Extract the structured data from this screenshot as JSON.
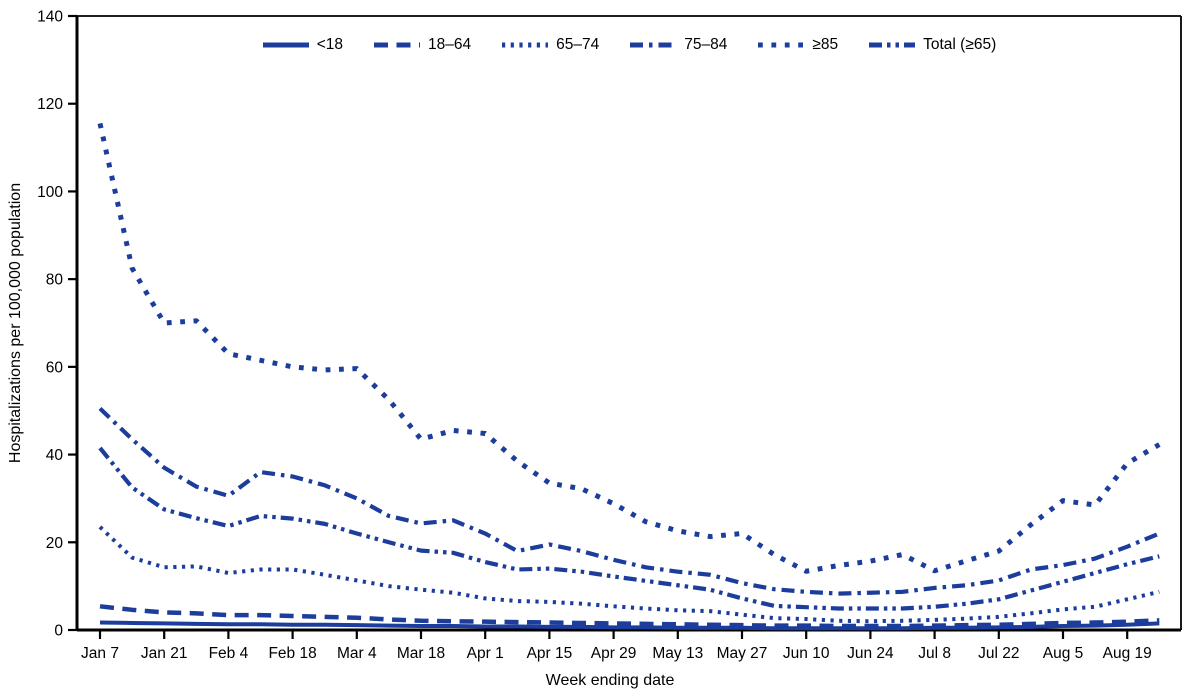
{
  "figure": {
    "line_color": "#1c3d9c",
    "axis_color": "#000000",
    "background": "#ffffff"
  },
  "chart_data": {
    "type": "line",
    "title": "",
    "xlabel": "Week ending date",
    "ylabel": "Hospitalizations per 100,000 population",
    "ylim": [
      0,
      140
    ],
    "y_ticks": [
      0,
      20,
      40,
      60,
      80,
      100,
      120,
      140
    ],
    "grid": false,
    "legend_position": "top-center",
    "x": [
      "Jan 7",
      "Jan 14",
      "Jan 21",
      "Jan 28",
      "Feb 4",
      "Feb 11",
      "Feb 18",
      "Feb 25",
      "Mar 4",
      "Mar 11",
      "Mar 18",
      "Mar 25",
      "Apr 1",
      "Apr 8",
      "Apr 15",
      "Apr 22",
      "Apr 29",
      "May 6",
      "May 13",
      "May 20",
      "May 27",
      "Jun 3",
      "Jun 10",
      "Jun 17",
      "Jun 24",
      "Jul 1",
      "Jul 8",
      "Jul 15",
      "Jul 22",
      "Jul 29",
      "Aug 5",
      "Aug 12",
      "Aug 19",
      "Aug 26"
    ],
    "x_tick_labels": [
      "Jan 7",
      "Jan 21",
      "Feb 4",
      "Feb 18",
      "Mar 4",
      "Mar 18",
      "Apr 1",
      "Apr 15",
      "Apr 29",
      "May 13",
      "May 27",
      "Jun 10",
      "Jun 24",
      "Jul 8",
      "Jul 22",
      "Aug 5",
      "Aug 19"
    ],
    "series": [
      {
        "name": "<18",
        "dash": "solid",
        "values": [
          1.7,
          1.6,
          1.5,
          1.4,
          1.3,
          1.3,
          1.2,
          1.2,
          1.1,
          1.0,
          0.9,
          0.9,
          0.8,
          0.8,
          0.7,
          0.7,
          0.6,
          0.6,
          0.5,
          0.5,
          0.5,
          0.4,
          0.4,
          0.4,
          0.4,
          0.4,
          0.5,
          0.5,
          0.6,
          0.7,
          0.9,
          1.0,
          1.2,
          1.5
        ]
      },
      {
        "name": "18–64",
        "dash": "dash",
        "values": [
          5.4,
          4.6,
          4.0,
          3.8,
          3.4,
          3.4,
          3.2,
          3.0,
          2.8,
          2.4,
          2.1,
          2.0,
          1.9,
          1.8,
          1.7,
          1.6,
          1.5,
          1.4,
          1.3,
          1.2,
          1.1,
          1.0,
          1.0,
          0.9,
          0.9,
          0.9,
          1.0,
          1.1,
          1.2,
          1.4,
          1.6,
          1.7,
          1.9,
          2.2
        ]
      },
      {
        "name": "65–74",
        "dash": "dot",
        "values": [
          23.5,
          16.5,
          14.3,
          14.5,
          13.0,
          13.8,
          13.8,
          12.6,
          11.3,
          10.0,
          9.2,
          8.5,
          7.2,
          6.6,
          6.4,
          6.0,
          5.4,
          4.9,
          4.5,
          4.3,
          3.5,
          2.7,
          2.5,
          2.1,
          2.0,
          2.1,
          2.3,
          2.6,
          3.0,
          3.8,
          4.7,
          5.3,
          7.0,
          8.7
        ]
      },
      {
        "name": "75–84",
        "dash": "dash-dot",
        "values": [
          50.5,
          43.5,
          37.0,
          32.7,
          30.6,
          36.0,
          35.0,
          33.0,
          30.0,
          26.0,
          24.3,
          25.0,
          22.0,
          18.0,
          19.5,
          18.0,
          16.0,
          14.3,
          13.3,
          12.6,
          10.7,
          9.3,
          8.7,
          8.3,
          8.5,
          8.7,
          9.6,
          10.2,
          11.3,
          13.8,
          14.8,
          16.3,
          19.0,
          22.0
        ]
      },
      {
        "name": "≥85",
        "dash": "square-dot",
        "values": [
          115.5,
          82.5,
          70.0,
          70.5,
          63.0,
          61.5,
          60.0,
          59.3,
          59.6,
          52.5,
          43.5,
          45.5,
          44.8,
          38.5,
          33.5,
          32.2,
          28.8,
          24.7,
          22.6,
          21.3,
          22.0,
          17.2,
          13.4,
          14.7,
          15.7,
          17.2,
          13.5,
          15.8,
          18.0,
          24.0,
          29.5,
          28.5,
          38.0,
          42.3
        ]
      },
      {
        "name": "Total (≥65)",
        "dash": "dash-dot-dot",
        "values": [
          41.5,
          32.5,
          27.5,
          25.5,
          23.7,
          26.0,
          25.4,
          24.2,
          22.0,
          20.0,
          18.1,
          17.6,
          15.5,
          13.8,
          14.0,
          13.3,
          12.2,
          11.2,
          10.2,
          9.2,
          7.2,
          5.5,
          5.2,
          4.9,
          4.9,
          4.9,
          5.3,
          6.0,
          7.0,
          9.0,
          11.0,
          13.0,
          15.0,
          16.8
        ]
      }
    ]
  }
}
